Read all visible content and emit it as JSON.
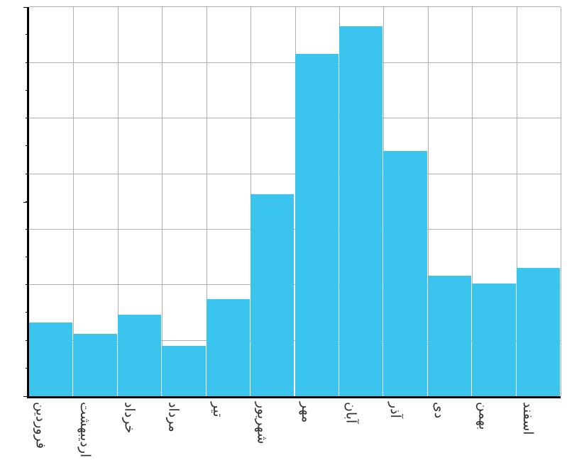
{
  "chart": {
    "type": "bar",
    "background_color": "#ffffff",
    "grid_color": "#b0b0b0",
    "axis_color": "#000000",
    "bar_color": "#3bc4ed",
    "label_color": "#333333",
    "label_fontsize": 19,
    "ylim": [
      0,
      100
    ],
    "y_gridlines": [
      0,
      14.3,
      28.6,
      42.8,
      57.1,
      71.4,
      85.7,
      100
    ],
    "y_ticks_major": [
      0,
      50,
      100
    ],
    "y_ticks_minor": [
      7.15,
      14.3,
      21.45,
      28.6,
      35.7,
      42.8,
      50,
      57.1,
      64.3,
      71.4,
      78.5,
      85.7,
      92.85
    ],
    "bar_width": 1.0,
    "categories": [
      "فروردین",
      "اردیبهشت",
      "خرداد",
      "مرداد",
      "تیر",
      "شهریور",
      "مهر",
      "آبان",
      "آذر",
      "دی",
      "بهمن",
      "اسفند"
    ],
    "values": [
      19,
      16,
      21,
      13,
      25,
      52,
      88,
      95,
      63,
      31,
      29,
      33
    ],
    "n_bars": 12
  }
}
